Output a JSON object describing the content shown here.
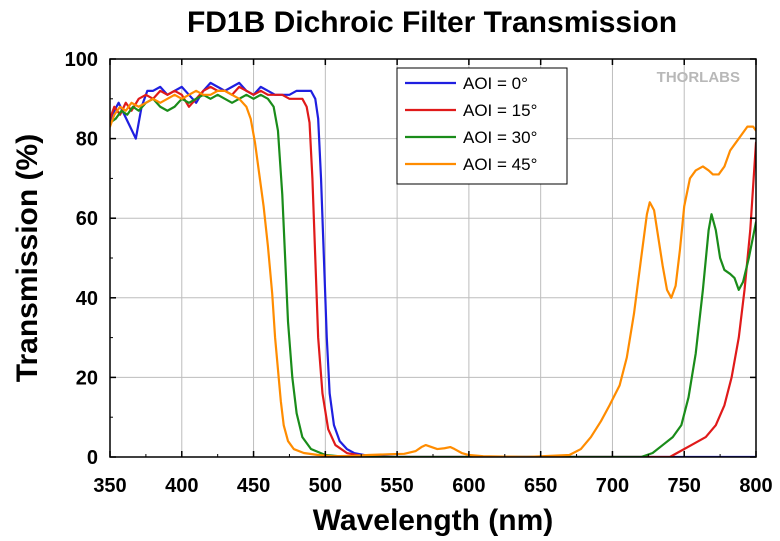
{
  "chart_data": {
    "type": "line",
    "title": "FD1B Dichroic Filter Transmission",
    "xlabel": "Wavelength (nm)",
    "ylabel": "Transmission (%)",
    "xlim": [
      350,
      800
    ],
    "ylim": [
      0,
      100
    ],
    "xticks": [
      350,
      400,
      450,
      500,
      550,
      600,
      650,
      700,
      750,
      800
    ],
    "yticks": [
      0,
      20,
      40,
      60,
      80,
      100
    ],
    "grid": true,
    "legend_position": "top-center",
    "watermark": "THORLABS",
    "series": [
      {
        "name": "AOI = 0°",
        "color": "#1f1fe0",
        "points": [
          [
            350,
            84
          ],
          [
            353,
            87
          ],
          [
            356,
            89
          ],
          [
            360,
            86
          ],
          [
            364,
            83
          ],
          [
            368,
            80
          ],
          [
            372,
            88
          ],
          [
            376,
            92
          ],
          [
            380,
            92
          ],
          [
            385,
            93
          ],
          [
            390,
            91
          ],
          [
            395,
            92
          ],
          [
            400,
            93
          ],
          [
            405,
            91
          ],
          [
            410,
            89
          ],
          [
            415,
            92
          ],
          [
            420,
            94
          ],
          [
            425,
            93
          ],
          [
            430,
            92
          ],
          [
            435,
            93
          ],
          [
            440,
            94
          ],
          [
            445,
            92
          ],
          [
            450,
            91
          ],
          [
            455,
            93
          ],
          [
            460,
            92
          ],
          [
            465,
            91
          ],
          [
            470,
            91
          ],
          [
            475,
            91
          ],
          [
            480,
            92
          ],
          [
            485,
            92
          ],
          [
            490,
            92
          ],
          [
            493,
            90
          ],
          [
            495,
            85
          ],
          [
            497,
            70
          ],
          [
            499,
            50
          ],
          [
            501,
            30
          ],
          [
            503,
            16
          ],
          [
            506,
            8
          ],
          [
            510,
            4
          ],
          [
            515,
            2
          ],
          [
            520,
            1
          ],
          [
            530,
            0.3
          ],
          [
            550,
            0
          ],
          [
            800,
            0
          ]
        ]
      },
      {
        "name": "AOI = 15°",
        "color": "#e01a1a",
        "points": [
          [
            350,
            85
          ],
          [
            353,
            88
          ],
          [
            357,
            86
          ],
          [
            361,
            89
          ],
          [
            365,
            87
          ],
          [
            370,
            90
          ],
          [
            375,
            91
          ],
          [
            380,
            90
          ],
          [
            385,
            92
          ],
          [
            390,
            91
          ],
          [
            395,
            92
          ],
          [
            400,
            91
          ],
          [
            405,
            88
          ],
          [
            410,
            90
          ],
          [
            415,
            92
          ],
          [
            420,
            93
          ],
          [
            425,
            92
          ],
          [
            430,
            92
          ],
          [
            435,
            91
          ],
          [
            440,
            93
          ],
          [
            445,
            92
          ],
          [
            450,
            91
          ],
          [
            455,
            92
          ],
          [
            460,
            91
          ],
          [
            465,
            91
          ],
          [
            470,
            91
          ],
          [
            475,
            90
          ],
          [
            480,
            90
          ],
          [
            484,
            90
          ],
          [
            487,
            88
          ],
          [
            489,
            84
          ],
          [
            491,
            70
          ],
          [
            493,
            50
          ],
          [
            495,
            30
          ],
          [
            498,
            16
          ],
          [
            502,
            7
          ],
          [
            507,
            3
          ],
          [
            515,
            1
          ],
          [
            525,
            0.3
          ],
          [
            540,
            0
          ],
          [
            740,
            0
          ],
          [
            745,
            1
          ],
          [
            755,
            3
          ],
          [
            765,
            5
          ],
          [
            772,
            8
          ],
          [
            778,
            13
          ],
          [
            783,
            20
          ],
          [
            788,
            30
          ],
          [
            792,
            42
          ],
          [
            796,
            57
          ],
          [
            800,
            79
          ]
        ]
      },
      {
        "name": "AOI = 30°",
        "color": "#1a8c1a",
        "points": [
          [
            350,
            84
          ],
          [
            354,
            85
          ],
          [
            358,
            87
          ],
          [
            362,
            86
          ],
          [
            366,
            88
          ],
          [
            370,
            87
          ],
          [
            375,
            89
          ],
          [
            380,
            90
          ],
          [
            385,
            88
          ],
          [
            390,
            87
          ],
          [
            395,
            88
          ],
          [
            400,
            90
          ],
          [
            405,
            89
          ],
          [
            410,
            90
          ],
          [
            415,
            91
          ],
          [
            420,
            90
          ],
          [
            425,
            91
          ],
          [
            430,
            90
          ],
          [
            435,
            89
          ],
          [
            440,
            90
          ],
          [
            445,
            91
          ],
          [
            450,
            90
          ],
          [
            455,
            91
          ],
          [
            460,
            90
          ],
          [
            464,
            88
          ],
          [
            467,
            82
          ],
          [
            470,
            66
          ],
          [
            472,
            50
          ],
          [
            474,
            34
          ],
          [
            477,
            20
          ],
          [
            480,
            11
          ],
          [
            484,
            5
          ],
          [
            490,
            2
          ],
          [
            500,
            0.5
          ],
          [
            515,
            0
          ],
          [
            720,
            0
          ],
          [
            728,
            1
          ],
          [
            735,
            3
          ],
          [
            742,
            5
          ],
          [
            748,
            8
          ],
          [
            753,
            15
          ],
          [
            758,
            26
          ],
          [
            763,
            42
          ],
          [
            767,
            57
          ],
          [
            769,
            61
          ],
          [
            772,
            57
          ],
          [
            775,
            50
          ],
          [
            778,
            47
          ],
          [
            782,
            46
          ],
          [
            785,
            45
          ],
          [
            788,
            42
          ],
          [
            791,
            44
          ],
          [
            795,
            50
          ],
          [
            800,
            59
          ]
        ]
      },
      {
        "name": "AOI = 45°",
        "color": "#ff8c00",
        "points": [
          [
            350,
            83
          ],
          [
            353,
            86
          ],
          [
            357,
            88
          ],
          [
            361,
            87
          ],
          [
            365,
            89
          ],
          [
            370,
            88
          ],
          [
            375,
            89
          ],
          [
            380,
            90
          ],
          [
            385,
            89
          ],
          [
            390,
            90
          ],
          [
            395,
            91
          ],
          [
            400,
            90
          ],
          [
            405,
            91
          ],
          [
            410,
            92
          ],
          [
            415,
            91
          ],
          [
            420,
            91
          ],
          [
            425,
            92
          ],
          [
            430,
            92
          ],
          [
            435,
            91
          ],
          [
            440,
            90
          ],
          [
            445,
            88
          ],
          [
            448,
            85
          ],
          [
            451,
            79
          ],
          [
            454,
            71
          ],
          [
            457,
            63
          ],
          [
            460,
            53
          ],
          [
            463,
            41
          ],
          [
            465,
            30
          ],
          [
            467,
            22
          ],
          [
            469,
            14
          ],
          [
            471,
            8
          ],
          [
            474,
            4
          ],
          [
            478,
            2
          ],
          [
            485,
            1
          ],
          [
            495,
            0.5
          ],
          [
            505,
            0.2
          ],
          [
            520,
            0.3
          ],
          [
            530,
            0.5
          ],
          [
            545,
            0.7
          ],
          [
            555,
            0.8
          ],
          [
            563,
            1.5
          ],
          [
            567,
            2.5
          ],
          [
            570,
            3
          ],
          [
            574,
            2.5
          ],
          [
            578,
            2
          ],
          [
            583,
            2.2
          ],
          [
            587,
            2.5
          ],
          [
            590,
            2
          ],
          [
            595,
            1
          ],
          [
            600,
            0.5
          ],
          [
            610,
            0.2
          ],
          [
            640,
            0
          ],
          [
            670,
            0.5
          ],
          [
            678,
            2
          ],
          [
            685,
            5
          ],
          [
            692,
            9
          ],
          [
            698,
            13
          ],
          [
            705,
            18
          ],
          [
            710,
            25
          ],
          [
            715,
            36
          ],
          [
            720,
            50
          ],
          [
            724,
            61
          ],
          [
            726,
            64
          ],
          [
            729,
            62
          ],
          [
            732,
            55
          ],
          [
            735,
            48
          ],
          [
            738,
            42
          ],
          [
            741,
            40
          ],
          [
            744,
            43
          ],
          [
            747,
            52
          ],
          [
            750,
            63
          ],
          [
            754,
            70
          ],
          [
            758,
            72
          ],
          [
            763,
            73
          ],
          [
            767,
            72
          ],
          [
            770,
            71
          ],
          [
            774,
            71
          ],
          [
            778,
            73
          ],
          [
            782,
            77
          ],
          [
            786,
            79
          ],
          [
            790,
            81
          ],
          [
            794,
            83
          ],
          [
            798,
            83
          ],
          [
            800,
            82
          ]
        ]
      }
    ]
  }
}
